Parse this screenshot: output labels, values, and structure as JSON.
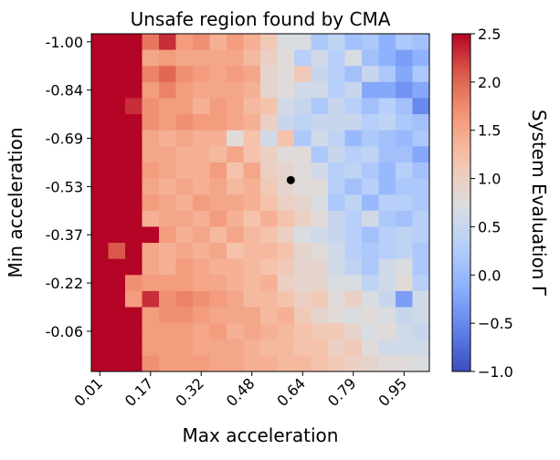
{
  "chart_data": {
    "type": "heatmap",
    "title": "Unsafe region found by CMA",
    "xlabel": "Max acceleration",
    "ylabel": "Min acceleration",
    "colorbar_label": "System Evaluation Γ",
    "colormap": "coolwarm",
    "vmin": -1.0,
    "vmax": 2.5,
    "x_ticks": [
      {
        "label": "0.01",
        "index": 0
      },
      {
        "label": "0.17",
        "index": 3
      },
      {
        "label": "0.32",
        "index": 6
      },
      {
        "label": "0.48",
        "index": 9
      },
      {
        "label": "0.64",
        "index": 12
      },
      {
        "label": "0.79",
        "index": 15
      },
      {
        "label": "0.95",
        "index": 18
      }
    ],
    "y_ticks": [
      {
        "label": "-1.00",
        "index": 0
      },
      {
        "label": "-0.84",
        "index": 3
      },
      {
        "label": "-0.69",
        "index": 6
      },
      {
        "label": "-0.53",
        "index": 9
      },
      {
        "label": "-0.37",
        "index": 12
      },
      {
        "label": "-0.22",
        "index": 15
      },
      {
        "label": "-0.06",
        "index": 18
      }
    ],
    "colorbar_ticks": [
      -1.0,
      -0.5,
      0.0,
      0.5,
      1.0,
      1.5,
      2.0,
      2.5
    ],
    "colorbar_tick_labels": [
      "−1.0",
      "−0.5",
      "0.0",
      "0.5",
      "1.0",
      "1.5",
      "2.0",
      "2.5"
    ],
    "marker": {
      "x_index": 11.3,
      "y_index": 8.6
    },
    "grid": false,
    "values": [
      [
        2.5,
        2.5,
        2.5,
        1.9,
        2.3,
        1.6,
        1.7,
        1.4,
        1.6,
        1.4,
        1.1,
        0.7,
        0.7,
        0.2,
        0.4,
        0.1,
        0.2,
        -0.1,
        0.2,
        0.1
      ],
      [
        2.5,
        2.5,
        2.5,
        1.5,
        1.6,
        1.5,
        1.5,
        1.5,
        1.5,
        1.3,
        1.0,
        0.8,
        0.3,
        0.6,
        0.3,
        0.7,
        0.1,
        -0.1,
        -0.3,
        -0.1
      ],
      [
        2.5,
        2.5,
        2.5,
        1.8,
        2.0,
        1.7,
        1.6,
        1.5,
        1.6,
        1.5,
        0.9,
        0.8,
        1.1,
        0.5,
        0.3,
        0.1,
        0.5,
        0.2,
        -0.2,
        0.2
      ],
      [
        2.5,
        2.5,
        2.5,
        1.6,
        1.8,
        1.6,
        1.5,
        1.5,
        1.5,
        1.4,
        0.9,
        0.8,
        0.6,
        0.6,
        0.3,
        0.5,
        -0.2,
        -0.2,
        -0.4,
        -0.2
      ],
      [
        2.5,
        2.5,
        2.3,
        1.7,
        1.6,
        1.6,
        1.4,
        1.6,
        1.5,
        1.3,
        1.2,
        0.6,
        0.5,
        0.2,
        0.5,
        0.3,
        0.1,
        0.3,
        0.1,
        -0.5
      ],
      [
        2.5,
        2.5,
        2.5,
        1.7,
        1.6,
        1.7,
        1.6,
        1.6,
        1.5,
        1.4,
        1.0,
        0.5,
        0.4,
        0.5,
        0.5,
        0.5,
        0.3,
        0.4,
        0.2,
        0.1
      ],
      [
        2.5,
        2.5,
        2.5,
        1.5,
        1.4,
        1.5,
        1.4,
        1.4,
        0.8,
        1.2,
        0.6,
        1.2,
        0.2,
        0.6,
        0.4,
        0.0,
        0.2,
        0.1,
        0.0,
        0.2
      ],
      [
        2.5,
        2.5,
        2.5,
        1.5,
        1.5,
        1.4,
        1.4,
        1.3,
        1.5,
        1.2,
        1.0,
        0.8,
        0.8,
        0.2,
        0.5,
        0.3,
        0.4,
        0.1,
        0.1,
        -0.2
      ],
      [
        2.5,
        2.5,
        2.5,
        1.6,
        1.5,
        1.4,
        1.4,
        1.6,
        1.2,
        1.5,
        1.0,
        0.9,
        0.8,
        0.6,
        0.3,
        0.4,
        0.2,
        0.0,
        0.3,
        0.1
      ],
      [
        2.5,
        2.5,
        2.5,
        1.5,
        1.4,
        1.5,
        1.4,
        1.5,
        1.3,
        1.4,
        1.1,
        0.9,
        0.8,
        0.8,
        0.3,
        0.1,
        0.3,
        0.0,
        0.2,
        0.2
      ],
      [
        2.5,
        2.5,
        2.5,
        1.6,
        1.5,
        1.4,
        1.6,
        1.5,
        1.5,
        1.4,
        1.2,
        1.0,
        0.9,
        0.7,
        0.2,
        0.4,
        0.0,
        0.3,
        0.3,
        0.2
      ],
      [
        2.5,
        2.5,
        2.5,
        1.4,
        1.5,
        1.5,
        1.4,
        1.6,
        1.4,
        1.2,
        1.4,
        1.2,
        1.0,
        0.8,
        0.5,
        0.3,
        0.6,
        0.2,
        0.1,
        0.3
      ],
      [
        2.5,
        2.5,
        2.5,
        2.5,
        1.6,
        1.4,
        1.5,
        1.3,
        1.5,
        1.3,
        1.2,
        1.0,
        0.7,
        0.6,
        0.5,
        0.3,
        0.1,
        0.3,
        0.4,
        0.3
      ],
      [
        2.5,
        2.1,
        2.5,
        1.5,
        1.4,
        1.5,
        1.4,
        1.5,
        1.2,
        1.3,
        1.3,
        1.2,
        0.9,
        0.8,
        0.6,
        0.3,
        0.2,
        0.3,
        0.4,
        0.2
      ],
      [
        2.5,
        2.5,
        2.5,
        1.5,
        1.4,
        1.6,
        1.5,
        1.4,
        1.4,
        1.3,
        1.2,
        1.1,
        0.9,
        0.9,
        0.6,
        0.4,
        0.2,
        0.6,
        0.7,
        0.2
      ],
      [
        2.5,
        2.5,
        1.7,
        1.6,
        1.6,
        1.6,
        1.5,
        1.5,
        1.4,
        1.3,
        1.4,
        1.0,
        0.9,
        0.9,
        0.7,
        0.7,
        0.4,
        0.6,
        0.8,
        0.3
      ],
      [
        2.5,
        2.5,
        1.6,
        2.3,
        1.7,
        1.8,
        1.7,
        1.6,
        1.5,
        1.3,
        1.3,
        1.2,
        1.0,
        1.1,
        0.8,
        1.0,
        0.7,
        0.5,
        -0.3,
        0.6
      ],
      [
        2.5,
        2.5,
        2.5,
        1.6,
        1.7,
        1.7,
        1.6,
        1.5,
        1.5,
        1.5,
        1.3,
        1.4,
        1.1,
        0.9,
        0.8,
        0.7,
        0.8,
        0.7,
        0.5,
        0.6
      ],
      [
        2.5,
        2.5,
        2.5,
        1.6,
        1.6,
        1.6,
        1.5,
        1.6,
        1.4,
        1.5,
        1.4,
        1.3,
        1.2,
        1.1,
        1.1,
        0.9,
        0.7,
        0.8,
        0.6,
        0.5
      ],
      [
        2.5,
        2.5,
        2.5,
        1.6,
        1.6,
        1.6,
        1.5,
        1.5,
        1.5,
        1.4,
        1.3,
        1.3,
        1.2,
        1.2,
        1.0,
        1.1,
        0.8,
        0.6,
        0.6,
        0.6
      ],
      [
        2.5,
        2.5,
        2.5,
        1.7,
        1.6,
        1.6,
        1.6,
        1.5,
        1.5,
        1.4,
        1.4,
        1.3,
        1.3,
        1.2,
        1.1,
        1.0,
        0.9,
        0.8,
        0.8,
        0.7
      ]
    ]
  }
}
